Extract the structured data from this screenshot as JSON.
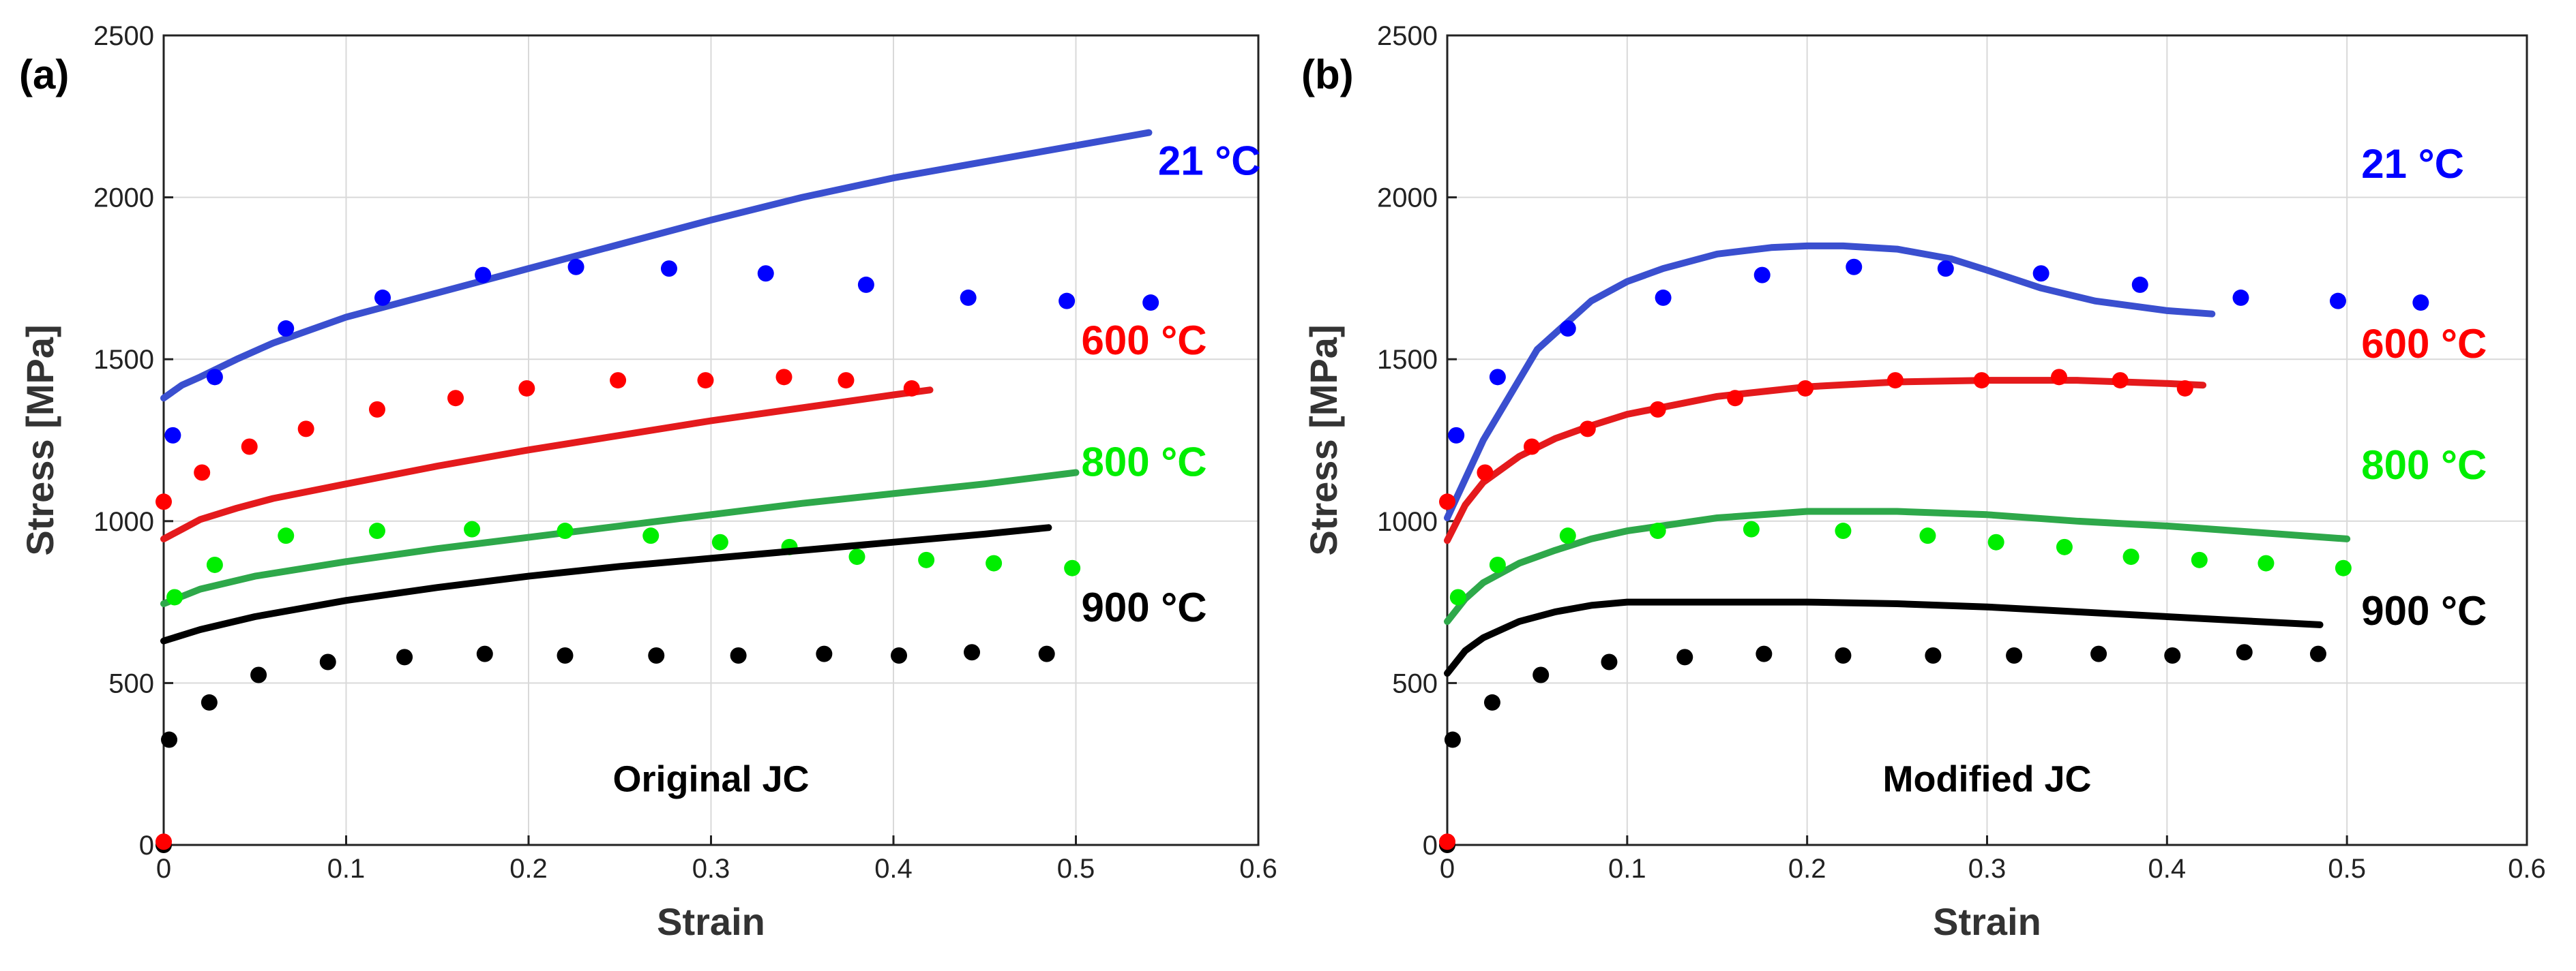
{
  "chart_data": [
    {
      "type": "line",
      "panel_label": "(a)",
      "annotation": "Original JC",
      "xlabel": "Strain",
      "ylabel": "Stress [MPa]",
      "xlim": [
        0,
        0.6
      ],
      "ylim": [
        0,
        2500
      ],
      "xticks": [
        0,
        0.1,
        0.2,
        0.3,
        0.4,
        0.5,
        0.6
      ],
      "xtick_labels": [
        "0",
        "0.1",
        "0.2",
        "0.3",
        "0.4",
        "0.5",
        "0.6"
      ],
      "yticks": [
        0,
        500,
        1000,
        1500,
        2000,
        2500
      ],
      "ytick_labels": [
        "0",
        "500",
        "1000",
        "1500",
        "2000",
        "2500"
      ],
      "grid": true,
      "series": [
        {
          "name": "21 °C",
          "color": "#0000ff",
          "line_color": "#3a4fcf",
          "label_position": [
            0.545,
            2070
          ],
          "experimental": {
            "x": [
              0.005,
              0.028,
              0.067,
              0.12,
              0.175,
              0.226,
              0.277,
              0.33,
              0.385,
              0.441,
              0.495,
              0.541
            ],
            "y": [
              1265,
              1445,
              1595,
              1690,
              1760,
              1785,
              1780,
              1765,
              1730,
              1690,
              1680,
              1675
            ]
          },
          "model": {
            "x": [
              0,
              0.01,
              0.02,
              0.04,
              0.06,
              0.08,
              0.1,
              0.15,
              0.2,
              0.25,
              0.3,
              0.35,
              0.4,
              0.45,
              0.5,
              0.54
            ],
            "y": [
              1380,
              1420,
              1445,
              1500,
              1550,
              1590,
              1630,
              1705,
              1780,
              1855,
              1930,
              2000,
              2060,
              2110,
              2160,
              2200
            ]
          }
        },
        {
          "name": "600 °C",
          "color": "#ff0000",
          "line_color": "#e41a1c",
          "label_position": [
            0.503,
            1515
          ],
          "experimental": {
            "x": [
              0,
              0.021,
              0.047,
              0.078,
              0.117,
              0.16,
              0.199,
              0.249,
              0.297,
              0.34,
              0.374,
              0.41
            ],
            "y": [
              1060,
              1150,
              1230,
              1285,
              1345,
              1380,
              1410,
              1435,
              1435,
              1445,
              1435,
              1410
            ]
          },
          "model": {
            "x": [
              0,
              0.01,
              0.02,
              0.04,
              0.06,
              0.1,
              0.15,
              0.2,
              0.25,
              0.3,
              0.35,
              0.4,
              0.42
            ],
            "y": [
              945,
              975,
              1005,
              1040,
              1070,
              1115,
              1170,
              1220,
              1265,
              1310,
              1350,
              1390,
              1405
            ]
          }
        },
        {
          "name": "800 °C",
          "color": "#00ee00",
          "line_color": "#2ea84a",
          "label_position": [
            0.503,
            1140
          ],
          "experimental": {
            "x": [
              0.006,
              0.028,
              0.067,
              0.117,
              0.169,
              0.22,
              0.267,
              0.305,
              0.343,
              0.38,
              0.418,
              0.455,
              0.498
            ],
            "y": [
              765,
              865,
              955,
              970,
              975,
              970,
              955,
              935,
              920,
              890,
              880,
              870,
              855
            ]
          },
          "model": {
            "x": [
              0,
              0.02,
              0.05,
              0.1,
              0.15,
              0.2,
              0.25,
              0.3,
              0.35,
              0.4,
              0.45,
              0.5
            ],
            "y": [
              745,
              790,
              830,
              875,
              915,
              950,
              985,
              1020,
              1055,
              1085,
              1115,
              1150
            ]
          }
        },
        {
          "name": "900 °C",
          "color": "#000000",
          "line_color": "#000000",
          "label_position": [
            0.503,
            690
          ],
          "experimental": {
            "x": [
              0,
              0.003,
              0.025,
              0.052,
              0.09,
              0.132,
              0.176,
              0.22,
              0.27,
              0.315,
              0.362,
              0.403,
              0.443,
              0.484
            ],
            "y": [
              0,
              325,
              440,
              525,
              565,
              580,
              590,
              585,
              585,
              585,
              590,
              585,
              595,
              590
            ]
          },
          "model": {
            "x": [
              0,
              0.02,
              0.05,
              0.1,
              0.15,
              0.2,
              0.25,
              0.3,
              0.35,
              0.4,
              0.45,
              0.485
            ],
            "y": [
              630,
              665,
              705,
              755,
              795,
              830,
              860,
              885,
              910,
              935,
              960,
              980
            ]
          }
        }
      ],
      "extra_points": [
        {
          "x": 0,
          "y": 10,
          "color": "#ff0000"
        }
      ]
    },
    {
      "type": "line",
      "panel_label": "(b)",
      "annotation": "Modified JC",
      "xlabel": "Strain",
      "ylabel": "Stress [MPa]",
      "xlim": [
        0,
        0.6
      ],
      "ylim": [
        0,
        2500
      ],
      "xticks": [
        0,
        0.1,
        0.2,
        0.3,
        0.4,
        0.5,
        0.6
      ],
      "xtick_labels": [
        "0",
        "0.1",
        "0.2",
        "0.3",
        "0.4",
        "0.5",
        "0.6"
      ],
      "yticks": [
        0,
        500,
        1000,
        1500,
        2000,
        2500
      ],
      "ytick_labels": [
        "0",
        "500",
        "1000",
        "1500",
        "2000",
        "2500"
      ],
      "grid": true,
      "series": [
        {
          "name": "21 °C",
          "color": "#0000ff",
          "line_color": "#3a4fcf",
          "label_position": [
            0.508,
            2060
          ],
          "experimental": {
            "x": [
              0.005,
              0.028,
              0.067,
              0.12,
              0.175,
              0.226,
              0.277,
              0.33,
              0.385,
              0.441,
              0.495,
              0.541
            ],
            "y": [
              1265,
              1445,
              1595,
              1690,
              1760,
              1785,
              1780,
              1765,
              1730,
              1690,
              1680,
              1675
            ]
          },
          "model": {
            "x": [
              0,
              0.02,
              0.05,
              0.08,
              0.1,
              0.12,
              0.15,
              0.18,
              0.2,
              0.22,
              0.25,
              0.28,
              0.3,
              0.33,
              0.36,
              0.4,
              0.425
            ],
            "y": [
              1010,
              1250,
              1530,
              1680,
              1740,
              1780,
              1825,
              1845,
              1850,
              1850,
              1840,
              1810,
              1775,
              1720,
              1680,
              1650,
              1640
            ]
          }
        },
        {
          "name": "600 °C",
          "color": "#ff0000",
          "line_color": "#e41a1c",
          "label_position": [
            0.508,
            1505
          ],
          "experimental": {
            "x": [
              0,
              0.021,
              0.047,
              0.078,
              0.117,
              0.16,
              0.199,
              0.249,
              0.297,
              0.34,
              0.374,
              0.41
            ],
            "y": [
              1060,
              1150,
              1230,
              1285,
              1345,
              1380,
              1410,
              1435,
              1435,
              1445,
              1435,
              1410
            ]
          },
          "model": {
            "x": [
              0,
              0.01,
              0.02,
              0.04,
              0.06,
              0.08,
              0.1,
              0.15,
              0.2,
              0.25,
              0.3,
              0.35,
              0.4,
              0.42
            ],
            "y": [
              940,
              1050,
              1120,
              1200,
              1255,
              1295,
              1330,
              1385,
              1415,
              1430,
              1435,
              1435,
              1425,
              1420
            ]
          }
        },
        {
          "name": "800 °C",
          "color": "#00ee00",
          "line_color": "#2ea84a",
          "label_position": [
            0.508,
            1130
          ],
          "experimental": {
            "x": [
              0.006,
              0.028,
              0.067,
              0.117,
              0.169,
              0.22,
              0.267,
              0.305,
              0.343,
              0.38,
              0.418,
              0.455,
              0.498
            ],
            "y": [
              765,
              865,
              955,
              970,
              975,
              970,
              955,
              935,
              920,
              890,
              880,
              870,
              855
            ]
          },
          "model": {
            "x": [
              0,
              0.01,
              0.02,
              0.04,
              0.06,
              0.08,
              0.1,
              0.15,
              0.2,
              0.25,
              0.3,
              0.35,
              0.4,
              0.45,
              0.5
            ],
            "y": [
              690,
              760,
              810,
              870,
              910,
              945,
              970,
              1010,
              1030,
              1030,
              1020,
              1000,
              985,
              965,
              945
            ]
          }
        },
        {
          "name": "900 °C",
          "color": "#000000",
          "line_color": "#000000",
          "label_position": [
            0.508,
            680
          ],
          "experimental": {
            "x": [
              0,
              0.003,
              0.025,
              0.052,
              0.09,
              0.132,
              0.176,
              0.22,
              0.27,
              0.315,
              0.362,
              0.403,
              0.443,
              0.484
            ],
            "y": [
              0,
              325,
              440,
              525,
              565,
              580,
              590,
              585,
              585,
              585,
              590,
              585,
              595,
              590
            ]
          },
          "model": {
            "x": [
              0,
              0.01,
              0.02,
              0.04,
              0.06,
              0.08,
              0.1,
              0.15,
              0.2,
              0.25,
              0.3,
              0.35,
              0.4,
              0.45,
              0.485
            ],
            "y": [
              530,
              600,
              640,
              690,
              720,
              740,
              750,
              750,
              750,
              745,
              735,
              720,
              705,
              690,
              680
            ]
          }
        }
      ],
      "extra_points": [
        {
          "x": 0,
          "y": 10,
          "color": "#ff0000"
        }
      ]
    }
  ]
}
